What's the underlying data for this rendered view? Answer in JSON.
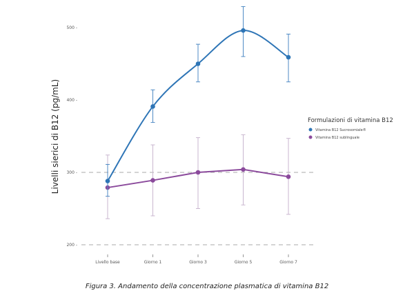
{
  "chart_data": {
    "type": "line",
    "title": "",
    "xlabel": "",
    "ylabel": "Livelli sierici di B12 (pg/mL)",
    "categories": [
      "Livello base",
      "Giorno 1",
      "Giorno 3",
      "Giorno 5",
      "Giorno 7"
    ],
    "ylim": [
      200,
      500
    ],
    "yticks": [
      200,
      300,
      400,
      500
    ],
    "grid": "dashed at 200 and 300",
    "legend": {
      "title": "Formulazioni di vitamina B12",
      "placement": "right"
    },
    "series": [
      {
        "name": "Vitamina B12 Sucrosomiale®",
        "color": "#2e75b6",
        "smooth": true,
        "values": [
          288,
          391,
          450,
          496,
          459
        ],
        "err_low": [
          267,
          369,
          425,
          460,
          425
        ],
        "err_high": [
          311,
          414,
          477,
          529,
          491
        ]
      },
      {
        "name": "Vitamina B12 sublinguale",
        "color": "#8b4a9c",
        "smooth": false,
        "values": [
          279,
          289,
          300,
          304,
          294
        ],
        "err_low": [
          236,
          240,
          250,
          255,
          242
        ],
        "err_high": [
          324,
          338,
          348,
          352,
          347
        ]
      }
    ]
  },
  "caption": "Figura 3. Andamento della concentrazione plasmatica di vitamina B12"
}
